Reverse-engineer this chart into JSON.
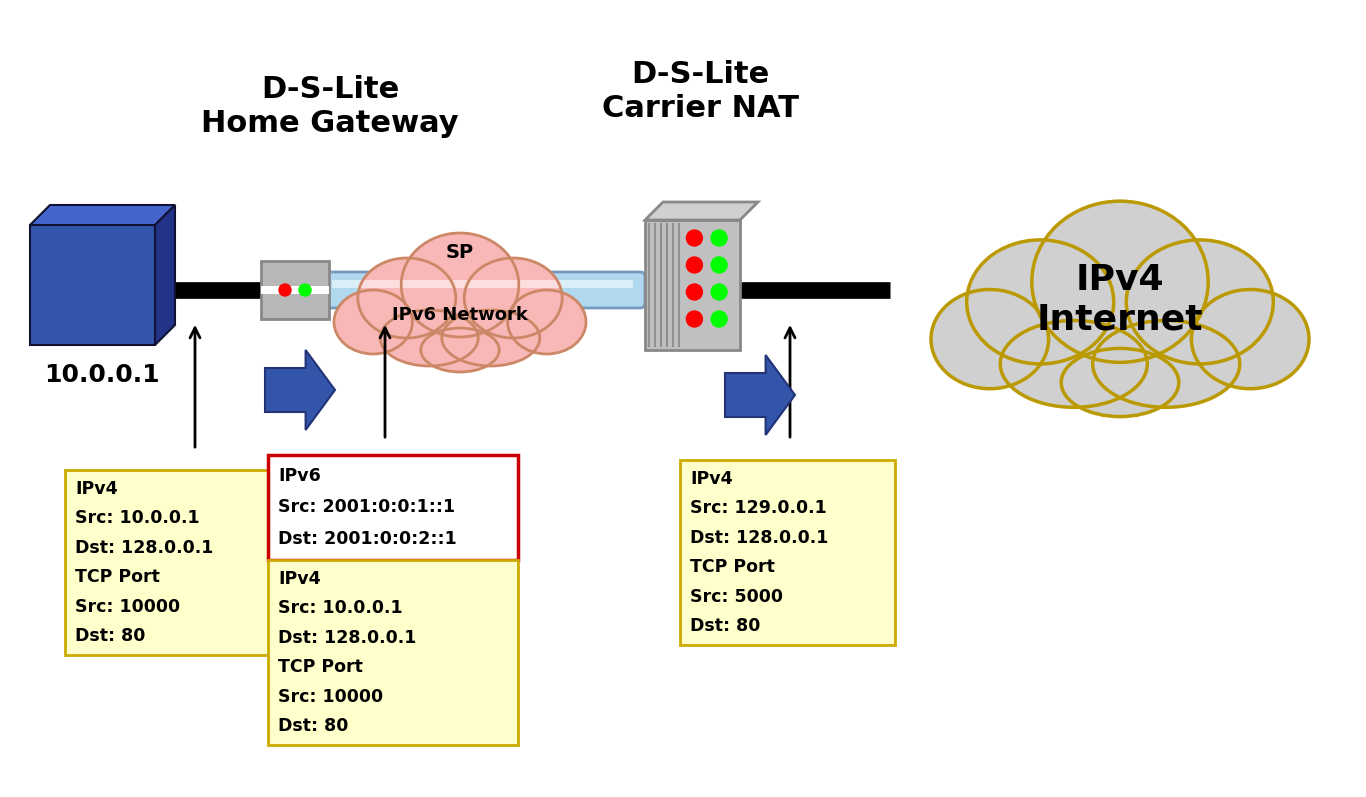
{
  "bg_color": "#ffffff",
  "title_dslite_hg": "D-S-Lite\nHome Gateway",
  "title_dslite_nat": "D-S-Lite\nCarrier NAT",
  "label_10001": "10.0.0.1",
  "label_ipv6net": "IPv6 Network",
  "label_sp": "SP",
  "label_ipv4internet": "IPv4\nInternet",
  "box1_lines": [
    "IPv4",
    "Src: 10.0.0.1",
    "Dst: 128.0.0.1",
    "TCP Port",
    "Src: 10000",
    "Dst: 80"
  ],
  "box2_top_lines": [
    "IPv6",
    "Src: 2001:0:0:1::1",
    "Dst: 2001:0:0:2::1"
  ],
  "box2_bot_lines": [
    "IPv4",
    "Src: 10.0.0.1",
    "Dst: 128.0.0.1",
    "TCP Port",
    "Src: 10000",
    "Dst: 80"
  ],
  "box3_lines": [
    "IPv4",
    "Src: 129.0.0.1",
    "Dst: 128.0.0.1",
    "TCP Port",
    "Src: 5000",
    "Dst: 80"
  ],
  "box_fill": "#ffffcc",
  "box_edge_yellow": "#ccaa00",
  "box_edge_red": "#cc0000",
  "cloud_pink_fill": "#f9b8b8",
  "cloud_pink_edge": "#cc8866",
  "cloud_gray_fill": "#d0d0d0",
  "cloud_gray_edge": "#bb9900",
  "blue_box_fill": "#3355aa",
  "blue_box_mid": "#4466cc",
  "blue_box_dark": "#223388",
  "router_fill": "#b0b0b0",
  "server_fill": "#c0c0c0",
  "server_top": "#d0d0d0",
  "cable_fill": "#b0d8ee",
  "cable_edge": "#7799bb",
  "arrow_blue": "#3355aa",
  "arrow_blue_edge": "#223377",
  "line_black": "#000000"
}
